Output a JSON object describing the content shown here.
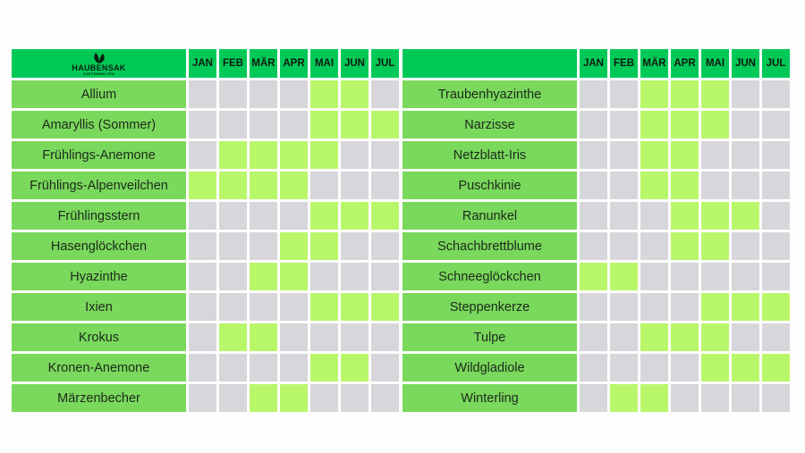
{
  "brand": {
    "name": "HAUBENSAK",
    "tagline": "GARTENWELTEN"
  },
  "months": [
    "JAN",
    "FEB",
    "MÄR",
    "APR",
    "MAI",
    "JUN",
    "JUL"
  ],
  "colors": {
    "header": "#00c957",
    "name_cell": "#7ad85c",
    "bloom": "#b9f76a",
    "empty": "#d7d6da"
  },
  "left_table": [
    {
      "name": "Allium",
      "bloom": [
        0,
        0,
        0,
        0,
        1,
        1,
        0
      ]
    },
    {
      "name": "Amaryllis (Sommer)",
      "bloom": [
        0,
        0,
        0,
        0,
        1,
        1,
        1
      ]
    },
    {
      "name": "Frühlings-Anemone",
      "bloom": [
        0,
        1,
        1,
        1,
        1,
        0,
        0
      ]
    },
    {
      "name": "Frühlings-Alpenveilchen",
      "bloom": [
        1,
        1,
        1,
        1,
        0,
        0,
        0
      ]
    },
    {
      "name": "Frühlingsstern",
      "bloom": [
        0,
        0,
        0,
        0,
        1,
        1,
        1
      ]
    },
    {
      "name": "Hasenglöckchen",
      "bloom": [
        0,
        0,
        0,
        1,
        1,
        0,
        0
      ]
    },
    {
      "name": "Hyazinthe",
      "bloom": [
        0,
        0,
        1,
        1,
        0,
        0,
        0
      ]
    },
    {
      "name": "Ixien",
      "bloom": [
        0,
        0,
        0,
        0,
        1,
        1,
        1
      ]
    },
    {
      "name": "Krokus",
      "bloom": [
        0,
        1,
        1,
        0,
        0,
        0,
        0
      ]
    },
    {
      "name": "Kronen-Anemone",
      "bloom": [
        0,
        0,
        0,
        0,
        1,
        1,
        0
      ]
    },
    {
      "name": "Märzenbecher",
      "bloom": [
        0,
        0,
        1,
        1,
        0,
        0,
        0
      ]
    }
  ],
  "right_table": [
    {
      "name": "Traubenhyazinthe",
      "bloom": [
        0,
        0,
        1,
        1,
        1,
        0,
        0
      ]
    },
    {
      "name": "Narzisse",
      "bloom": [
        0,
        0,
        1,
        1,
        1,
        0,
        0
      ]
    },
    {
      "name": "Netzblatt-Iris",
      "bloom": [
        0,
        0,
        1,
        1,
        0,
        0,
        0
      ]
    },
    {
      "name": "Puschkinie",
      "bloom": [
        0,
        0,
        1,
        1,
        0,
        0,
        0
      ]
    },
    {
      "name": "Ranunkel",
      "bloom": [
        0,
        0,
        0,
        1,
        1,
        1,
        0
      ]
    },
    {
      "name": "Schachbrettblume",
      "bloom": [
        0,
        0,
        0,
        1,
        1,
        0,
        0
      ]
    },
    {
      "name": "Schneeglöckchen",
      "bloom": [
        1,
        1,
        0,
        0,
        0,
        0,
        0
      ]
    },
    {
      "name": "Steppenkerze",
      "bloom": [
        0,
        0,
        0,
        0,
        1,
        1,
        1
      ]
    },
    {
      "name": "Tulpe",
      "bloom": [
        0,
        0,
        1,
        1,
        1,
        0,
        0
      ]
    },
    {
      "name": "Wildgladiole",
      "bloom": [
        0,
        0,
        0,
        0,
        1,
        1,
        1
      ]
    },
    {
      "name": "Winterling",
      "bloom": [
        0,
        1,
        1,
        0,
        0,
        0,
        0
      ]
    }
  ]
}
